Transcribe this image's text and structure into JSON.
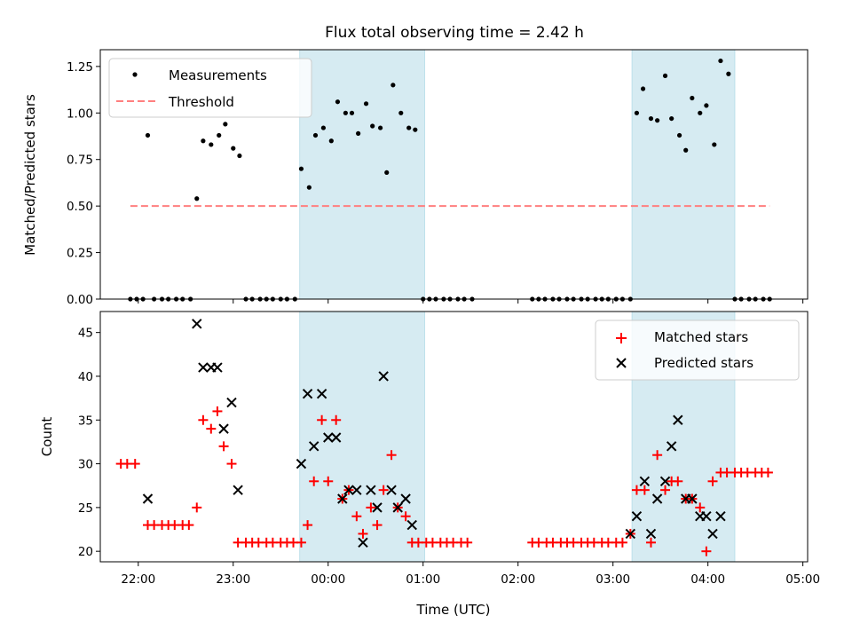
{
  "chart_data": [
    {
      "type": "scatter",
      "title": "Flux total observing time = 2.42 h",
      "ylabel": "Matched/Predicted stars",
      "xlabel": "",
      "xlim": [
        "21:36",
        "05:03"
      ],
      "ylim": [
        0,
        1.34
      ],
      "grid": false,
      "legend_position": "top-left",
      "yticks": [
        "0.00",
        "0.25",
        "0.50",
        "0.75",
        "1.00",
        "1.25"
      ],
      "shaded_intervals": [
        [
          "23:42",
          "01:01"
        ],
        [
          "03:12",
          "04:17"
        ]
      ],
      "series": [
        {
          "name": "Measurements",
          "marker": "dot",
          "color": "#000000",
          "points": [
            [
              "21:55",
              0
            ],
            [
              "21:59",
              0
            ],
            [
              "22:03",
              0
            ],
            [
              "22:06",
              0.88
            ],
            [
              "22:10",
              0
            ],
            [
              "22:15",
              0
            ],
            [
              "22:19",
              0
            ],
            [
              "22:24",
              0
            ],
            [
              "22:28",
              0
            ],
            [
              "22:33",
              0
            ],
            [
              "22:37",
              0.54
            ],
            [
              "22:41",
              0.85
            ],
            [
              "22:46",
              0.83
            ],
            [
              "22:51",
              0.88
            ],
            [
              "22:55",
              0.94
            ],
            [
              "23:00",
              0.81
            ],
            [
              "23:04",
              0.77
            ],
            [
              "23:08",
              0
            ],
            [
              "23:12",
              0
            ],
            [
              "23:17",
              0
            ],
            [
              "23:21",
              0
            ],
            [
              "23:25",
              0
            ],
            [
              "23:30",
              0
            ],
            [
              "23:34",
              0
            ],
            [
              "23:39",
              0
            ],
            [
              "23:43",
              0.7
            ],
            [
              "23:48",
              0.6
            ],
            [
              "23:52",
              0.88
            ],
            [
              "23:57",
              0.92
            ],
            [
              "00:02",
              0.85
            ],
            [
              "00:06",
              1.06
            ],
            [
              "00:11",
              1.0
            ],
            [
              "00:15",
              1.0
            ],
            [
              "00:19",
              0.89
            ],
            [
              "00:24",
              1.05
            ],
            [
              "00:28",
              0.93
            ],
            [
              "00:33",
              0.92
            ],
            [
              "00:37",
              0.68
            ],
            [
              "00:41",
              1.15
            ],
            [
              "00:46",
              1.0
            ],
            [
              "00:51",
              0.92
            ],
            [
              "00:55",
              0.91
            ],
            [
              "01:00",
              0
            ],
            [
              "01:04",
              0
            ],
            [
              "01:08",
              0
            ],
            [
              "01:13",
              0
            ],
            [
              "01:17",
              0
            ],
            [
              "01:22",
              0
            ],
            [
              "01:26",
              0
            ],
            [
              "01:31",
              0
            ],
            [
              "02:09",
              0
            ],
            [
              "02:13",
              0
            ],
            [
              "02:17",
              0
            ],
            [
              "02:22",
              0
            ],
            [
              "02:26",
              0
            ],
            [
              "02:31",
              0
            ],
            [
              "02:35",
              0
            ],
            [
              "02:40",
              0
            ],
            [
              "02:44",
              0
            ],
            [
              "02:49",
              0
            ],
            [
              "02:53",
              0
            ],
            [
              "02:57",
              0
            ],
            [
              "03:02",
              0
            ],
            [
              "03:06",
              0
            ],
            [
              "03:11",
              0
            ],
            [
              "03:15",
              1.0
            ],
            [
              "03:19",
              1.13
            ],
            [
              "03:24",
              0.97
            ],
            [
              "03:28",
              0.96
            ],
            [
              "03:33",
              1.2
            ],
            [
              "03:37",
              0.97
            ],
            [
              "03:42",
              0.88
            ],
            [
              "03:46",
              0.8
            ],
            [
              "03:50",
              1.08
            ],
            [
              "03:55",
              1.0
            ],
            [
              "03:59",
              1.04
            ],
            [
              "04:04",
              0.83
            ],
            [
              "04:08",
              1.28
            ],
            [
              "04:13",
              1.21
            ],
            [
              "04:17",
              0
            ],
            [
              "04:21",
              0
            ],
            [
              "04:26",
              0
            ],
            [
              "04:30",
              0
            ],
            [
              "04:35",
              0
            ],
            [
              "04:39",
              0
            ]
          ]
        },
        {
          "name": "Threshold",
          "style": "dashed",
          "color": "#ff7f7f",
          "points": [
            [
              "21:55",
              0.5
            ],
            [
              "04:39",
              0.5
            ]
          ]
        }
      ]
    },
    {
      "type": "scatter",
      "title": "",
      "xlabel": "Time (UTC)",
      "ylabel": "Count",
      "xlim": [
        "21:36",
        "05:03"
      ],
      "ylim": [
        18.8,
        47.4
      ],
      "grid": false,
      "legend_position": "top-right",
      "xticks": [
        "22:00",
        "23:00",
        "00:00",
        "01:00",
        "02:00",
        "03:00",
        "04:00",
        "05:00"
      ],
      "yticks": [
        "20",
        "25",
        "30",
        "35",
        "40",
        "45"
      ],
      "shaded_intervals": [
        [
          "23:42",
          "01:01"
        ],
        [
          "03:12",
          "04:17"
        ]
      ],
      "series": [
        {
          "name": "Matched stars",
          "marker": "plus",
          "color": "#ff0000",
          "points": [
            [
              "21:49",
              30
            ],
            [
              "21:53",
              30
            ],
            [
              "21:58",
              30
            ],
            [
              "22:06",
              23
            ],
            [
              "22:10",
              23
            ],
            [
              "22:15",
              23
            ],
            [
              "22:19",
              23
            ],
            [
              "22:23",
              23
            ],
            [
              "22:28",
              23
            ],
            [
              "22:32",
              23
            ],
            [
              "22:37",
              25
            ],
            [
              "22:41",
              35
            ],
            [
              "22:46",
              34
            ],
            [
              "22:50",
              36
            ],
            [
              "22:54",
              32
            ],
            [
              "22:59",
              30
            ],
            [
              "23:03",
              21
            ],
            [
              "23:08",
              21
            ],
            [
              "23:12",
              21
            ],
            [
              "23:16",
              21
            ],
            [
              "23:21",
              21
            ],
            [
              "23:25",
              21
            ],
            [
              "23:30",
              21
            ],
            [
              "23:34",
              21
            ],
            [
              "23:38",
              21
            ],
            [
              "23:43",
              21
            ],
            [
              "23:47",
              23
            ],
            [
              "23:51",
              28
            ],
            [
              "23:56",
              35
            ],
            [
              "00:00",
              28
            ],
            [
              "00:05",
              35
            ],
            [
              "00:09",
              26
            ],
            [
              "00:13",
              27
            ],
            [
              "00:18",
              24
            ],
            [
              "00:22",
              22
            ],
            [
              "00:27",
              25
            ],
            [
              "00:31",
              23
            ],
            [
              "00:35",
              27
            ],
            [
              "00:40",
              31
            ],
            [
              "00:44",
              25
            ],
            [
              "00:49",
              24
            ],
            [
              "00:53",
              21
            ],
            [
              "00:57",
              21
            ],
            [
              "01:02",
              21
            ],
            [
              "01:06",
              21
            ],
            [
              "01:11",
              21
            ],
            [
              "01:15",
              21
            ],
            [
              "01:19",
              21
            ],
            [
              "01:24",
              21
            ],
            [
              "01:28",
              21
            ],
            [
              "02:09",
              21
            ],
            [
              "02:13",
              21
            ],
            [
              "02:18",
              21
            ],
            [
              "02:22",
              21
            ],
            [
              "02:27",
              21
            ],
            [
              "02:31",
              21
            ],
            [
              "02:35",
              21
            ],
            [
              "02:40",
              21
            ],
            [
              "02:44",
              21
            ],
            [
              "02:48",
              21
            ],
            [
              "02:53",
              21
            ],
            [
              "02:57",
              21
            ],
            [
              "03:02",
              21
            ],
            [
              "03:06",
              21
            ],
            [
              "03:11",
              22
            ],
            [
              "03:15",
              27
            ],
            [
              "03:20",
              27
            ],
            [
              "03:24",
              21
            ],
            [
              "03:28",
              31
            ],
            [
              "03:33",
              27
            ],
            [
              "03:37",
              28
            ],
            [
              "03:41",
              28
            ],
            [
              "03:46",
              26
            ],
            [
              "03:50",
              26
            ],
            [
              "03:55",
              25
            ],
            [
              "03:59",
              20
            ],
            [
              "04:03",
              28
            ],
            [
              "04:08",
              29
            ],
            [
              "04:12",
              29
            ],
            [
              "04:17",
              29
            ],
            [
              "04:21",
              29
            ],
            [
              "04:25",
              29
            ],
            [
              "04:30",
              29
            ],
            [
              "04:34",
              29
            ],
            [
              "04:38",
              29
            ]
          ]
        },
        {
          "name": "Predicted stars",
          "marker": "x",
          "color": "#000000",
          "points": [
            [
              "22:06",
              26
            ],
            [
              "22:37",
              46
            ],
            [
              "22:41",
              41
            ],
            [
              "22:46",
              41
            ],
            [
              "22:50",
              41
            ],
            [
              "22:54",
              34
            ],
            [
              "22:59",
              37
            ],
            [
              "23:03",
              27
            ],
            [
              "23:43",
              30
            ],
            [
              "23:47",
              38
            ],
            [
              "23:51",
              32
            ],
            [
              "23:56",
              38
            ],
            [
              "00:00",
              33
            ],
            [
              "00:05",
              33
            ],
            [
              "00:09",
              26
            ],
            [
              "00:13",
              27
            ],
            [
              "00:18",
              27
            ],
            [
              "00:22",
              21
            ],
            [
              "00:27",
              27
            ],
            [
              "00:31",
              25
            ],
            [
              "00:35",
              40
            ],
            [
              "00:40",
              27
            ],
            [
              "00:44",
              25
            ],
            [
              "00:49",
              26
            ],
            [
              "00:53",
              23
            ],
            [
              "03:11",
              22
            ],
            [
              "03:15",
              24
            ],
            [
              "03:20",
              28
            ],
            [
              "03:24",
              22
            ],
            [
              "03:28",
              26
            ],
            [
              "03:33",
              28
            ],
            [
              "03:37",
              32
            ],
            [
              "03:41",
              35
            ],
            [
              "03:46",
              26
            ],
            [
              "03:50",
              26
            ],
            [
              "03:55",
              24
            ],
            [
              "03:59",
              24
            ],
            [
              "04:03",
              22
            ],
            [
              "04:08",
              24
            ]
          ]
        }
      ]
    }
  ]
}
